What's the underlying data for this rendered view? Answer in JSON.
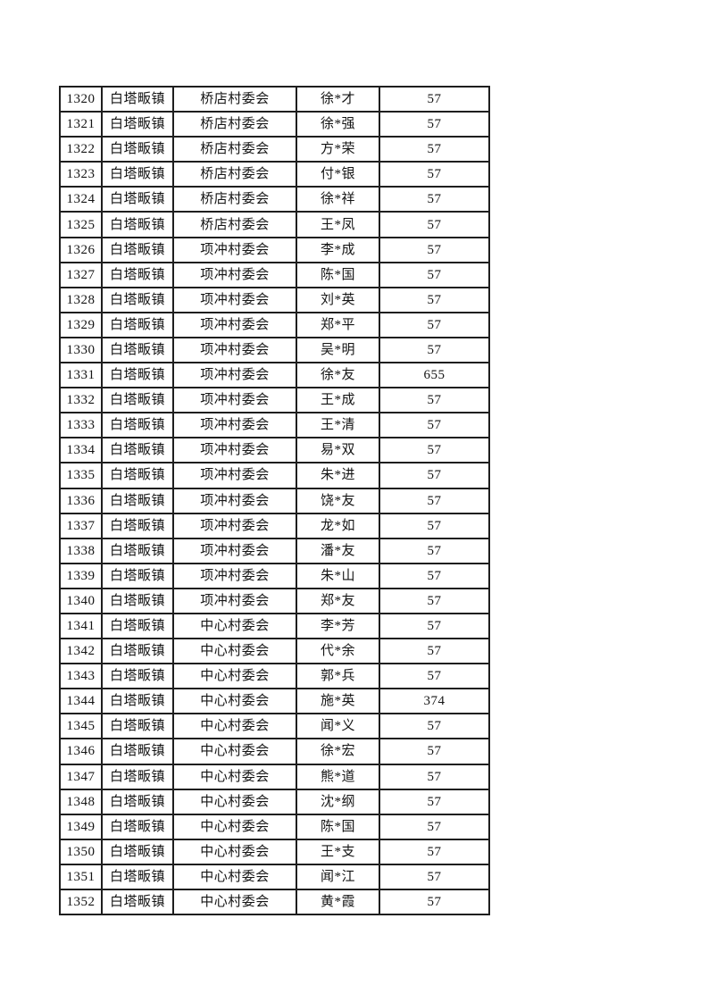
{
  "page": {
    "background_color": "#ffffff",
    "grid_border_color": "#1e1e1e",
    "text_color": "#141414"
  },
  "table": {
    "columns": [
      {
        "key": "serial"
      },
      {
        "key": "town"
      },
      {
        "key": "village"
      },
      {
        "key": "name"
      },
      {
        "key": "amount"
      }
    ],
    "rows": [
      [
        "1320",
        "白塔畈镇",
        "桥店村委会",
        "徐*才",
        "57"
      ],
      [
        "1321",
        "白塔畈镇",
        "桥店村委会",
        "徐*强",
        "57"
      ],
      [
        "1322",
        "白塔畈镇",
        "桥店村委会",
        "方*荣",
        "57"
      ],
      [
        "1323",
        "白塔畈镇",
        "桥店村委会",
        "付*银",
        "57"
      ],
      [
        "1324",
        "白塔畈镇",
        "桥店村委会",
        "徐*祥",
        "57"
      ],
      [
        "1325",
        "白塔畈镇",
        "桥店村委会",
        "王*凤",
        "57"
      ],
      [
        "1326",
        "白塔畈镇",
        "项冲村委会",
        "李*成",
        "57"
      ],
      [
        "1327",
        "白塔畈镇",
        "项冲村委会",
        "陈*国",
        "57"
      ],
      [
        "1328",
        "白塔畈镇",
        "项冲村委会",
        "刘*英",
        "57"
      ],
      [
        "1329",
        "白塔畈镇",
        "项冲村委会",
        "郑*平",
        "57"
      ],
      [
        "1330",
        "白塔畈镇",
        "项冲村委会",
        "吴*明",
        "57"
      ],
      [
        "1331",
        "白塔畈镇",
        "项冲村委会",
        "徐*友",
        "655"
      ],
      [
        "1332",
        "白塔畈镇",
        "项冲村委会",
        "王*成",
        "57"
      ],
      [
        "1333",
        "白塔畈镇",
        "项冲村委会",
        "王*清",
        "57"
      ],
      [
        "1334",
        "白塔畈镇",
        "项冲村委会",
        "易*双",
        "57"
      ],
      [
        "1335",
        "白塔畈镇",
        "项冲村委会",
        "朱*进",
        "57"
      ],
      [
        "1336",
        "白塔畈镇",
        "项冲村委会",
        "饶*友",
        "57"
      ],
      [
        "1337",
        "白塔畈镇",
        "项冲村委会",
        "龙*如",
        "57"
      ],
      [
        "1338",
        "白塔畈镇",
        "项冲村委会",
        "潘*友",
        "57"
      ],
      [
        "1339",
        "白塔畈镇",
        "项冲村委会",
        "朱*山",
        "57"
      ],
      [
        "1340",
        "白塔畈镇",
        "项冲村委会",
        "郑*友",
        "57"
      ],
      [
        "1341",
        "白塔畈镇",
        "中心村委会",
        "李*芳",
        "57"
      ],
      [
        "1342",
        "白塔畈镇",
        "中心村委会",
        "代*余",
        "57"
      ],
      [
        "1343",
        "白塔畈镇",
        "中心村委会",
        "郭*兵",
        "57"
      ],
      [
        "1344",
        "白塔畈镇",
        "中心村委会",
        "施*英",
        "374"
      ],
      [
        "1345",
        "白塔畈镇",
        "中心村委会",
        "闻*义",
        "57"
      ],
      [
        "1346",
        "白塔畈镇",
        "中心村委会",
        "徐*宏",
        "57"
      ],
      [
        "1347",
        "白塔畈镇",
        "中心村委会",
        "熊*道",
        "57"
      ],
      [
        "1348",
        "白塔畈镇",
        "中心村委会",
        "沈*纲",
        "57"
      ],
      [
        "1349",
        "白塔畈镇",
        "中心村委会",
        "陈*国",
        "57"
      ],
      [
        "1350",
        "白塔畈镇",
        "中心村委会",
        "王*支",
        "57"
      ],
      [
        "1351",
        "白塔畈镇",
        "中心村委会",
        "闻*江",
        "57"
      ],
      [
        "1352",
        "白塔畈镇",
        "中心村委会",
        "黄*霞",
        "57"
      ]
    ]
  }
}
